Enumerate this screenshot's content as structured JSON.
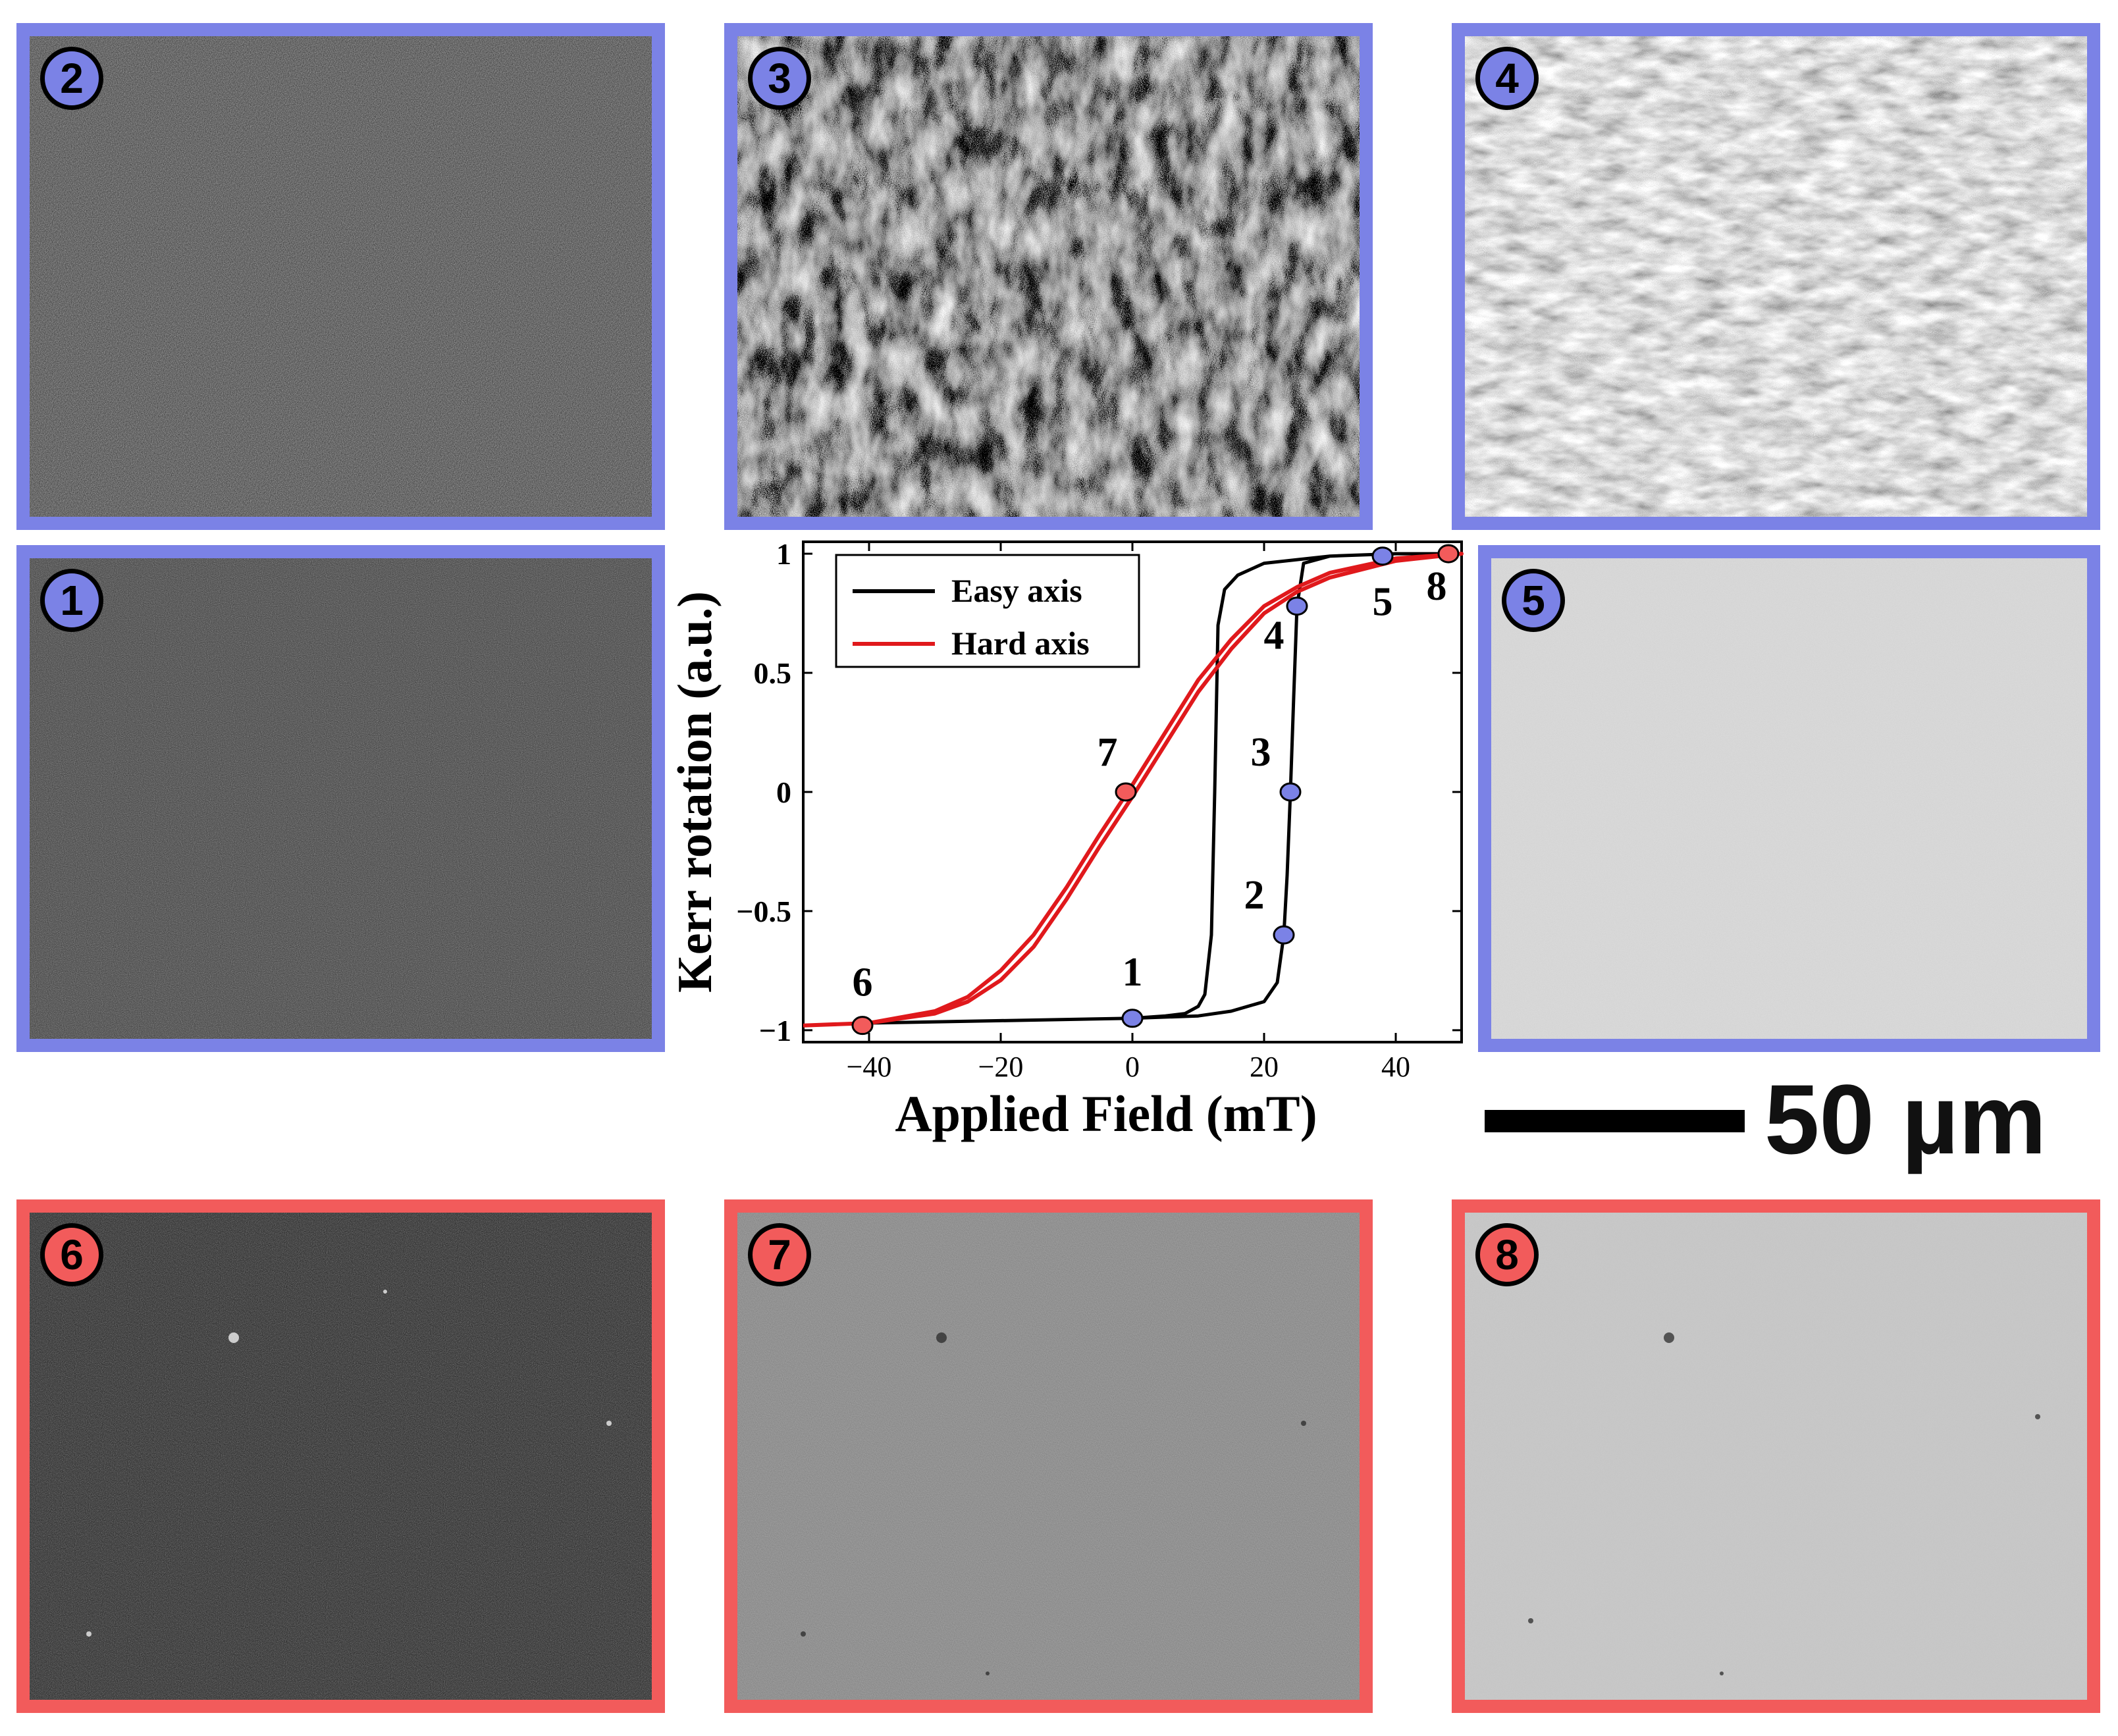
{
  "panels": [
    {
      "id": "2",
      "label": "2",
      "group": "easy",
      "tone": "medium-speckle"
    },
    {
      "id": "3",
      "label": "3",
      "group": "easy",
      "tone": "dark-domains"
    },
    {
      "id": "4",
      "label": "4",
      "group": "easy",
      "tone": "dark-streaks"
    },
    {
      "id": "1",
      "label": "1",
      "group": "easy",
      "tone": "uniform-dark"
    },
    {
      "id": "5",
      "label": "5",
      "group": "easy",
      "tone": "uniform-light"
    },
    {
      "id": "6",
      "label": "6",
      "group": "hard",
      "tone": "uniform-dark"
    },
    {
      "id": "7",
      "label": "7",
      "group": "hard",
      "tone": "uniform-medium"
    },
    {
      "id": "8",
      "label": "8",
      "group": "hard",
      "tone": "uniform-light"
    }
  ],
  "colors": {
    "easy_frame": "#7b82e6",
    "hard_frame": "#f25b5b",
    "easy_curve": "#000000",
    "hard_curve": "#e0191c"
  },
  "scale_bar": {
    "label": "50 µm"
  },
  "chart_data": {
    "type": "line",
    "xlabel": "Applied Field (mT)",
    "ylabel": "Kerr rotation (a.u.)",
    "xlim": [
      -50,
      50
    ],
    "ylim": [
      -1.05,
      1.05
    ],
    "xticks": [
      -40,
      -20,
      0,
      20,
      40
    ],
    "yticks": [
      -1,
      -0.5,
      0,
      0.5,
      1
    ],
    "xtick_labels": [
      "−40",
      "−20",
      "0",
      "20",
      "40"
    ],
    "ytick_labels": [
      "−1",
      "−0.5",
      "0",
      "0.5",
      "1"
    ],
    "legend": {
      "position": "top-left",
      "entries": [
        "Easy axis",
        "Hard axis"
      ]
    },
    "series": [
      {
        "name": "Easy axis",
        "color": "#000000",
        "x": [
          -50,
          -40,
          -20,
          0,
          5,
          8,
          10,
          11,
          12,
          12.5,
          13,
          14,
          16,
          20,
          30,
          40,
          50,
          40,
          30,
          26,
          25,
          24.5,
          24,
          23.5,
          23,
          22,
          20,
          15,
          10,
          0,
          -20,
          -40,
          -50
        ],
        "y": [
          -0.98,
          -0.97,
          -0.96,
          -0.95,
          -0.94,
          -0.93,
          -0.9,
          -0.85,
          -0.6,
          0.0,
          0.7,
          0.85,
          0.91,
          0.96,
          0.99,
          1.0,
          1.0,
          1.0,
          0.99,
          0.96,
          0.78,
          0.4,
          0.0,
          -0.35,
          -0.6,
          -0.8,
          -0.88,
          -0.92,
          -0.94,
          -0.95,
          -0.96,
          -0.97,
          -0.98
        ]
      },
      {
        "name": "Hard axis",
        "color": "#e0191c",
        "x": [
          -50,
          -40,
          -30,
          -25,
          -20,
          -15,
          -10,
          -5,
          0,
          5,
          10,
          15,
          20,
          25,
          30,
          40,
          50,
          40,
          30,
          25,
          20,
          15,
          10,
          5,
          0,
          -5,
          -10,
          -15,
          -20,
          -25,
          -30,
          -40,
          -50
        ],
        "y": [
          -0.98,
          -0.97,
          -0.93,
          -0.88,
          -0.79,
          -0.65,
          -0.45,
          -0.23,
          -0.02,
          0.2,
          0.42,
          0.6,
          0.75,
          0.84,
          0.9,
          0.97,
          1.0,
          0.98,
          0.92,
          0.86,
          0.78,
          0.64,
          0.47,
          0.25,
          0.03,
          -0.18,
          -0.4,
          -0.6,
          -0.75,
          -0.86,
          -0.92,
          -0.97,
          -0.98
        ]
      }
    ],
    "markers": [
      {
        "label": "1",
        "x": 0,
        "y": -0.95,
        "color": "#7b82e6"
      },
      {
        "label": "2",
        "x": 23,
        "y": -0.6,
        "color": "#7b82e6"
      },
      {
        "label": "3",
        "x": 24,
        "y": 0.0,
        "color": "#7b82e6"
      },
      {
        "label": "4",
        "x": 25,
        "y": 0.78,
        "color": "#7b82e6"
      },
      {
        "label": "5",
        "x": 38,
        "y": 0.99,
        "color": "#7b82e6"
      },
      {
        "label": "6",
        "x": -41,
        "y": -0.98,
        "color": "#f25b5b"
      },
      {
        "label": "7",
        "x": -1,
        "y": 0.0,
        "color": "#f25b5b"
      },
      {
        "label": "8",
        "x": 48,
        "y": 1.0,
        "color": "#f25b5b"
      }
    ]
  }
}
